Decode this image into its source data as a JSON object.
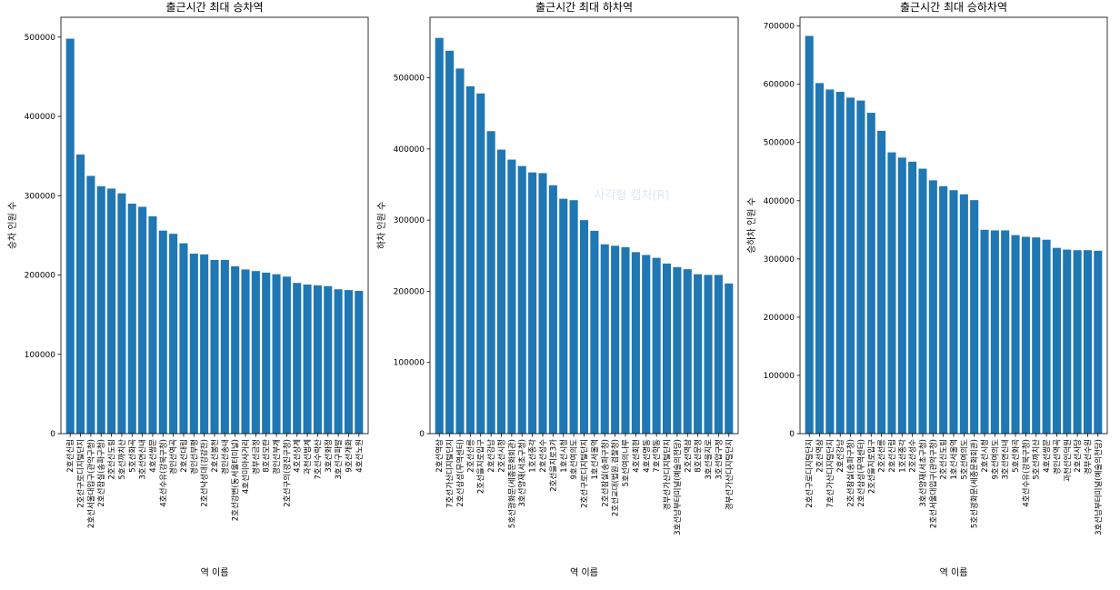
{
  "chart_data": [
    {
      "type": "bar",
      "title": "출근시간 최대 승차역",
      "xlabel": "역 이름",
      "ylabel": "승차 인원 수",
      "ylim": [
        0,
        525000
      ],
      "yticks": [
        0,
        100000,
        200000,
        300000,
        400000,
        500000
      ],
      "grid": false,
      "color": "#1f77b4",
      "categories": [
        "2호선신림",
        "2호선구로디지털단지",
        "2호선서울대입구(관악구청)",
        "2호선잠실(송파구청)",
        "2호선신도림",
        "5호선까치산",
        "5호선화곡",
        "3호선연신내",
        "4호선쌍문",
        "4호선수유(강북구청)",
        "경인선역곡",
        "2호선대림",
        "경인선부평",
        "2호선낙성대(강감찬)",
        "2호선봉천",
        "경인선송내",
        "2호선강변(동서울터미널)",
        "4호선미아사거리",
        "경부선금정",
        "8호선모란",
        "경인선부개",
        "2호선구의(광진구청)",
        "4호선상계",
        "과천선범계",
        "7호선수락산",
        "3호선화정",
        "3호선구파발",
        "9호선개화",
        "4호선노원"
      ],
      "values": [
        498000,
        352000,
        325000,
        312000,
        309000,
        303000,
        290000,
        286000,
        274000,
        256000,
        252000,
        240000,
        227000,
        226000,
        219000,
        219000,
        211000,
        207000,
        205000,
        203000,
        201000,
        198000,
        190000,
        188000,
        187000,
        186000,
        182000,
        181000,
        180000
      ]
    },
    {
      "type": "bar",
      "title": "출근시간 최대 하차역",
      "xlabel": "역 이름",
      "ylabel": "하차 인원 수",
      "ylim": [
        0,
        585000
      ],
      "yticks": [
        0,
        100000,
        200000,
        300000,
        400000,
        500000
      ],
      "grid": false,
      "color": "#1f77b4",
      "categories": [
        "2호선역삼",
        "7호선가산디지털단지",
        "2호선삼성(무역센터)",
        "2호선선릉",
        "2호선을지로입구",
        "2호선강남",
        "2호선시청",
        "5호선광화문(세종문화회관)",
        "3호선양재(서초구청)",
        "1호선종각",
        "2호선성수",
        "2호선을지로3가",
        "1호선시청",
        "9호선여의도",
        "2호선구로디지털단지",
        "1호선서울역",
        "2호선잠실(송파구청)",
        "2호선교대(법원.검찰청)",
        "5호선여의나루",
        "4호선회현",
        "4호선명동",
        "7호선학동",
        "경부선가산디지털단지",
        "3호선남부터미널(예술의전당)",
        "2호선역삼",
        "8호선문정",
        "3호선을지로",
        "3호선압구정",
        "경부선가산디지털단지"
      ],
      "values": [
        556000,
        538000,
        513000,
        488000,
        478000,
        425000,
        399000,
        385000,
        376000,
        367000,
        366000,
        349000,
        330000,
        328000,
        300000,
        285000,
        266000,
        264000,
        262000,
        255000,
        251000,
        247000,
        239000,
        234000,
        231000,
        224000,
        223000,
        223000,
        211000
      ]
    },
    {
      "type": "bar",
      "title": "출근시간 최대 승하차역",
      "xlabel": "역 이름",
      "ylabel": "승하차 인원 수",
      "ylim": [
        0,
        715000
      ],
      "yticks": [
        0,
        100000,
        200000,
        300000,
        400000,
        500000,
        600000,
        700000
      ],
      "grid": false,
      "color": "#1f77b4",
      "categories": [
        "2호선구로디지털단지",
        "2호선역삼",
        "7호선가산디지털단지",
        "2호선강남",
        "2호선잠실(송파구청)",
        "2호선삼성(무역센터)",
        "2호선을지로입구",
        "2호선선릉",
        "2호선신림",
        "1호선종각",
        "2호선성수",
        "3호선양재(서초구청)",
        "2호선서울대입구(관악구청)",
        "2호선신도림",
        "1호선서울역",
        "5호선여의도",
        "5호선광화문(세종문화회관)",
        "2호선시청",
        "9호선여의도",
        "3호선연신내",
        "5호선화곡",
        "4호선수유(강북구청)",
        "5호선까치산",
        "4호선쌍문",
        "경인선역곡",
        "과천선인덕원",
        "2호선사당",
        "경부선수원",
        "3호선남부터미널(예술의전당)"
      ],
      "values": [
        683000,
        602000,
        591000,
        587000,
        577000,
        572000,
        551000,
        520000,
        483000,
        474000,
        467000,
        455000,
        435000,
        425000,
        418000,
        411000,
        401000,
        350000,
        349000,
        349000,
        341000,
        338000,
        337000,
        333000,
        319000,
        316000,
        315000,
        315000,
        314000
      ]
    }
  ],
  "watermark": "사각형 캡처(R)"
}
